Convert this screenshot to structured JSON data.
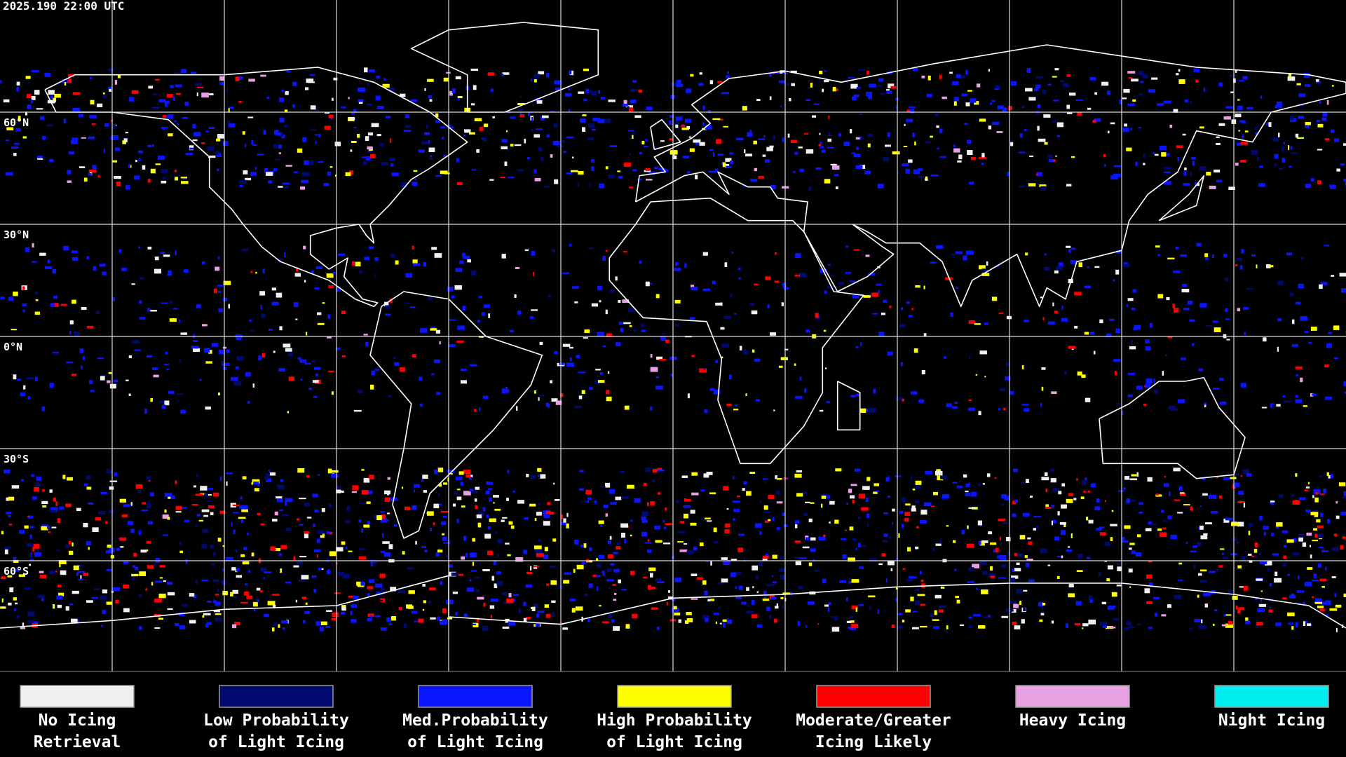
{
  "timestamp": "2025.190 22:00 UTC",
  "lat_labels": [
    "60°N",
    "30°N",
    "0°N",
    "30°S",
    "60°S"
  ],
  "legend": [
    {
      "lines": [
        "No Icing",
        "Retrieval"
      ],
      "color": "#f0f0f0"
    },
    {
      "lines": [
        "Low Probability",
        "of Light Icing"
      ],
      "color": "#000a6e"
    },
    {
      "lines": [
        "Med.Probability",
        "of Light Icing"
      ],
      "color": "#0a14ff"
    },
    {
      "lines": [
        "High Probability",
        "of Light Icing"
      ],
      "color": "#ffff00"
    },
    {
      "lines": [
        "Moderate/Greater",
        "Icing Likely"
      ],
      "color": "#ff0000"
    },
    {
      "lines": [
        "Heavy Icing"
      ],
      "color": "#e8a2e4"
    },
    {
      "lines": [
        "Night Icing"
      ],
      "color": "#00eef0"
    }
  ]
}
